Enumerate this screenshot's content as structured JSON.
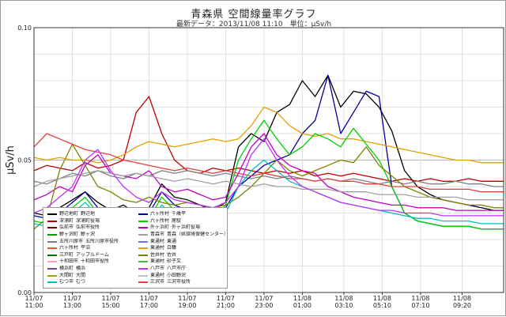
{
  "header": {
    "title": "青森県 空間線量率グラフ",
    "subtitle": "最新データ：2013/11/08 11:10　単位：μSv/h"
  },
  "chart_data": {
    "type": "line",
    "title": "青森県 空間線量率グラフ",
    "subtitle": "最新データ：2013/11/08 11:10　単位：μSv/h",
    "ylabel": "μSv/h",
    "xlabel": "",
    "ylim": [
      0,
      0.1
    ],
    "yticks": [
      {
        "value": 0.0,
        "label": "0.00"
      },
      {
        "value": 0.05,
        "label": "0.05"
      },
      {
        "value": 0.1,
        "label": "0.10"
      }
    ],
    "grid": {
      "horizontal": true,
      "vertical": true
    },
    "xlim": [
      0,
      1470
    ],
    "x_unit": "minutes after 11/07 11:00",
    "xticks": [
      {
        "value": 0,
        "date": "11/07",
        "time": "11:00"
      },
      {
        "value": 120,
        "date": "11/07",
        "time": "13:00"
      },
      {
        "value": 240,
        "date": "11/07",
        "time": "15:00"
      },
      {
        "value": 360,
        "date": "11/07",
        "time": "17:00"
      },
      {
        "value": 480,
        "date": "11/07",
        "time": "19:00"
      },
      {
        "value": 600,
        "date": "11/07",
        "time": "21:00"
      },
      {
        "value": 720,
        "date": "11/07",
        "time": "23:00"
      },
      {
        "value": 840,
        "date": "11/08",
        "time": "01:00"
      },
      {
        "value": 970,
        "date": "11/08",
        "time": "03:10"
      },
      {
        "value": 1090,
        "date": "11/08",
        "time": "05:10"
      },
      {
        "value": 1210,
        "date": "11/08",
        "time": "07:10"
      },
      {
        "value": 1340,
        "date": "11/08",
        "time": "09:20"
      }
    ],
    "legend_position": "bottom-left inside plot",
    "legend": [
      {
        "station": "野辺地町",
        "site": "野辺地",
        "color": "#000000"
      },
      {
        "station": "深浦町",
        "site": "深浦町役場",
        "color": "#c00000"
      },
      {
        "station": "弘前市",
        "site": "弘前市役所",
        "color": "#800000"
      },
      {
        "station": "鰺ヶ沢町",
        "site": "鰺ヶ沢",
        "color": "#00a000"
      },
      {
        "station": "五所川原市",
        "site": "五所川原市役所",
        "color": "#808080"
      },
      {
        "station": "六ヶ所村",
        "site": "平沼",
        "color": "#e06020"
      },
      {
        "station": "三戸町",
        "site": "アップルドーム",
        "color": "#007000"
      },
      {
        "station": "十和田市",
        "site": "十和田市役所",
        "color": "#ff9fc0"
      },
      {
        "station": "横浜町",
        "site": "横浜",
        "color": "#7b3fa0"
      },
      {
        "station": "大間町",
        "site": "大間",
        "color": "#a0a000"
      },
      {
        "station": "むつ市",
        "site": "むつ",
        "color": "#00c0c0"
      },
      {
        "station": "六ヶ所村",
        "site": "千歳平",
        "color": "#0000a0"
      },
      {
        "station": "六ヶ所村",
        "site": "尾駮",
        "color": "#00d000"
      },
      {
        "station": "外ヶ浜町",
        "site": "外ヶ浜町役場",
        "color": "#c000c0"
      },
      {
        "station": "青森市",
        "site": "青森（県環境保健センター）",
        "color": "#a0a0a0"
      },
      {
        "station": "東通村",
        "site": "東通",
        "color": "#7070ff"
      },
      {
        "station": "東通村",
        "site": "白糠",
        "color": "#e0a000"
      },
      {
        "station": "佐井村",
        "site": "佐井",
        "color": "#808000"
      },
      {
        "station": "東通村",
        "site": "砂子又",
        "color": "#40c040"
      },
      {
        "station": "八戸市",
        "site": "八戸市庁",
        "color": "#c030ff"
      },
      {
        "station": "東通村",
        "site": "小田野沢",
        "color": "#c0c0c0"
      },
      {
        "station": "三沢市",
        "site": "三沢市役所",
        "color": "#e04040"
      }
    ],
    "x": [
      0,
      40,
      80,
      120,
      160,
      200,
      240,
      280,
      320,
      360,
      400,
      440,
      480,
      520,
      560,
      600,
      640,
      680,
      720,
      760,
      800,
      840,
      880,
      920,
      960,
      1000,
      1040,
      1080,
      1120,
      1160,
      1200,
      1240,
      1280,
      1320,
      1360,
      1400,
      1440,
      1470
    ],
    "series": [
      {
        "name": "野辺地町 野辺地",
        "color": "#000000",
        "values": [
          0.03,
          0.029,
          0.032,
          0.035,
          0.038,
          0.034,
          0.031,
          0.033,
          0.03,
          0.032,
          0.041,
          0.036,
          0.035,
          0.033,
          0.031,
          0.034,
          0.055,
          0.06,
          0.057,
          0.068,
          0.071,
          0.08,
          0.074,
          0.082,
          0.07,
          0.076,
          0.075,
          0.07,
          0.061,
          0.046,
          0.04,
          0.037,
          0.035,
          0.034,
          0.033,
          0.032,
          0.031,
          0.031
        ]
      },
      {
        "name": "深浦町 深浦町役場",
        "color": "#c00000",
        "values": [
          0.046,
          0.048,
          0.047,
          0.046,
          0.049,
          0.047,
          0.048,
          0.05,
          0.068,
          0.074,
          0.06,
          0.05,
          0.046,
          0.045,
          0.047,
          0.046,
          0.047,
          0.046,
          0.045,
          0.046,
          0.045,
          0.046,
          0.044,
          0.045,
          0.044,
          0.045,
          0.044,
          0.043,
          0.042,
          0.043,
          0.042,
          0.043,
          0.042,
          0.042,
          0.043,
          0.042,
          0.042,
          0.042
        ]
      },
      {
        "name": "五所川原市 五所川原市役所",
        "color": "#808080",
        "values": [
          0.042,
          0.041,
          0.043,
          0.045,
          0.044,
          0.046,
          0.044,
          0.043,
          0.045,
          0.044,
          0.046,
          0.045,
          0.046,
          0.045,
          0.044,
          0.045,
          0.044,
          0.043,
          0.044,
          0.043,
          0.044,
          0.043,
          0.042,
          0.043,
          0.042,
          0.043,
          0.042,
          0.041,
          0.042,
          0.041,
          0.042,
          0.041,
          0.041,
          0.042,
          0.041,
          0.041,
          0.04,
          0.04
        ]
      },
      {
        "name": "六ヶ所村 千歳平",
        "color": "#0000a0",
        "values": [
          0.029,
          0.028,
          0.03,
          0.034,
          0.038,
          0.032,
          0.029,
          0.031,
          0.028,
          0.03,
          0.038,
          0.033,
          0.031,
          0.03,
          0.029,
          0.032,
          0.04,
          0.044,
          0.048,
          0.05,
          0.052,
          0.06,
          0.065,
          0.082,
          0.06,
          0.068,
          0.076,
          0.074,
          0.04,
          0.03,
          0.027,
          0.026,
          0.025,
          0.025,
          0.025,
          0.024,
          0.024,
          0.024
        ]
      },
      {
        "name": "東通村 白糠",
        "color": "#e0a000",
        "values": [
          0.051,
          0.05,
          0.051,
          0.05,
          0.05,
          0.049,
          0.05,
          0.052,
          0.055,
          0.057,
          0.056,
          0.055,
          0.056,
          0.057,
          0.058,
          0.057,
          0.058,
          0.063,
          0.07,
          0.068,
          0.063,
          0.06,
          0.059,
          0.06,
          0.058,
          0.058,
          0.057,
          0.056,
          0.055,
          0.054,
          0.053,
          0.052,
          0.051,
          0.05,
          0.05,
          0.049,
          0.049,
          0.049
        ]
      },
      {
        "name": "六ヶ所村 尾駮",
        "color": "#00d000",
        "values": [
          0.027,
          0.026,
          0.028,
          0.032,
          0.036,
          0.03,
          0.027,
          0.029,
          0.027,
          0.028,
          0.036,
          0.031,
          0.03,
          0.029,
          0.028,
          0.033,
          0.05,
          0.058,
          0.065,
          0.058,
          0.052,
          0.055,
          0.06,
          0.058,
          0.055,
          0.062,
          0.056,
          0.05,
          0.04,
          0.03,
          0.027,
          0.026,
          0.025,
          0.025,
          0.025,
          0.024,
          0.024,
          0.024
        ]
      },
      {
        "name": "外ヶ浜町 外ヶ浜町役場",
        "color": "#c000c0",
        "values": [
          0.035,
          0.037,
          0.04,
          0.038,
          0.048,
          0.052,
          0.045,
          0.044,
          0.043,
          0.046,
          0.04,
          0.038,
          0.039,
          0.037,
          0.035,
          0.036,
          0.045,
          0.055,
          0.06,
          0.052,
          0.048,
          0.046,
          0.045,
          0.04,
          0.038,
          0.036,
          0.035,
          0.034,
          0.033,
          0.033,
          0.032,
          0.032,
          0.032,
          0.031,
          0.031,
          0.031,
          0.031,
          0.031
        ]
      },
      {
        "name": "佐井村 佐井",
        "color": "#808000",
        "values": [
          0.024,
          0.028,
          0.046,
          0.056,
          0.048,
          0.04,
          0.038,
          0.035,
          0.034,
          0.036,
          0.034,
          0.033,
          0.034,
          0.033,
          0.032,
          0.033,
          0.036,
          0.04,
          0.045,
          0.05,
          0.046,
          0.044,
          0.046,
          0.048,
          0.05,
          0.049,
          0.055,
          0.048,
          0.044,
          0.04,
          0.038,
          0.036,
          0.035,
          0.034,
          0.033,
          0.033,
          0.032,
          0.032
        ]
      },
      {
        "name": "三沢市 三沢市役所",
        "color": "#e04040",
        "values": [
          0.055,
          0.06,
          0.058,
          0.056,
          0.054,
          0.053,
          0.052,
          0.05,
          0.049,
          0.048,
          0.047,
          0.046,
          0.047,
          0.046,
          0.045,
          0.046,
          0.045,
          0.044,
          0.045,
          0.044,
          0.043,
          0.043,
          0.042,
          0.043,
          0.042,
          0.042,
          0.041,
          0.041,
          0.04,
          0.04,
          0.04,
          0.039,
          0.039,
          0.039,
          0.039,
          0.038,
          0.038,
          0.038
        ]
      },
      {
        "name": "むつ市 むつ",
        "color": "#00c0c0",
        "values": [
          0.026,
          0.025,
          0.027,
          0.03,
          0.034,
          0.029,
          0.026,
          0.028,
          0.026,
          0.027,
          0.033,
          0.029,
          0.028,
          0.027,
          0.026,
          0.03,
          0.04,
          0.046,
          0.05,
          0.046,
          0.042,
          0.04,
          0.038,
          0.036,
          0.034,
          0.033,
          0.032,
          0.031,
          0.03,
          0.029,
          0.028,
          0.028,
          0.027,
          0.027,
          0.027,
          0.026,
          0.026,
          0.026
        ]
      },
      {
        "name": "青森市 青森（県環境保健センター）",
        "color": "#a0a0a0",
        "values": [
          0.04,
          0.042,
          0.043,
          0.044,
          0.045,
          0.046,
          0.045,
          0.044,
          0.045,
          0.044,
          0.043,
          0.042,
          0.043,
          0.042,
          0.041,
          0.042,
          0.041,
          0.04,
          0.041,
          0.04,
          0.04,
          0.039,
          0.039,
          0.039,
          0.038,
          0.038,
          0.038,
          0.037,
          0.037,
          0.037,
          0.036,
          0.036,
          0.036,
          0.036,
          0.035,
          0.035,
          0.035,
          0.035
        ]
      },
      {
        "name": "八戸市 八戸市庁",
        "color": "#c030ff",
        "values": [
          0.03,
          0.032,
          0.036,
          0.04,
          0.05,
          0.054,
          0.046,
          0.04,
          0.036,
          0.034,
          0.038,
          0.035,
          0.034,
          0.033,
          0.032,
          0.034,
          0.04,
          0.052,
          0.058,
          0.05,
          0.044,
          0.04,
          0.038,
          0.036,
          0.034,
          0.033,
          0.032,
          0.031,
          0.031,
          0.03,
          0.03,
          0.03,
          0.029,
          0.029,
          0.029,
          0.029,
          0.029,
          0.029
        ]
      }
    ]
  }
}
